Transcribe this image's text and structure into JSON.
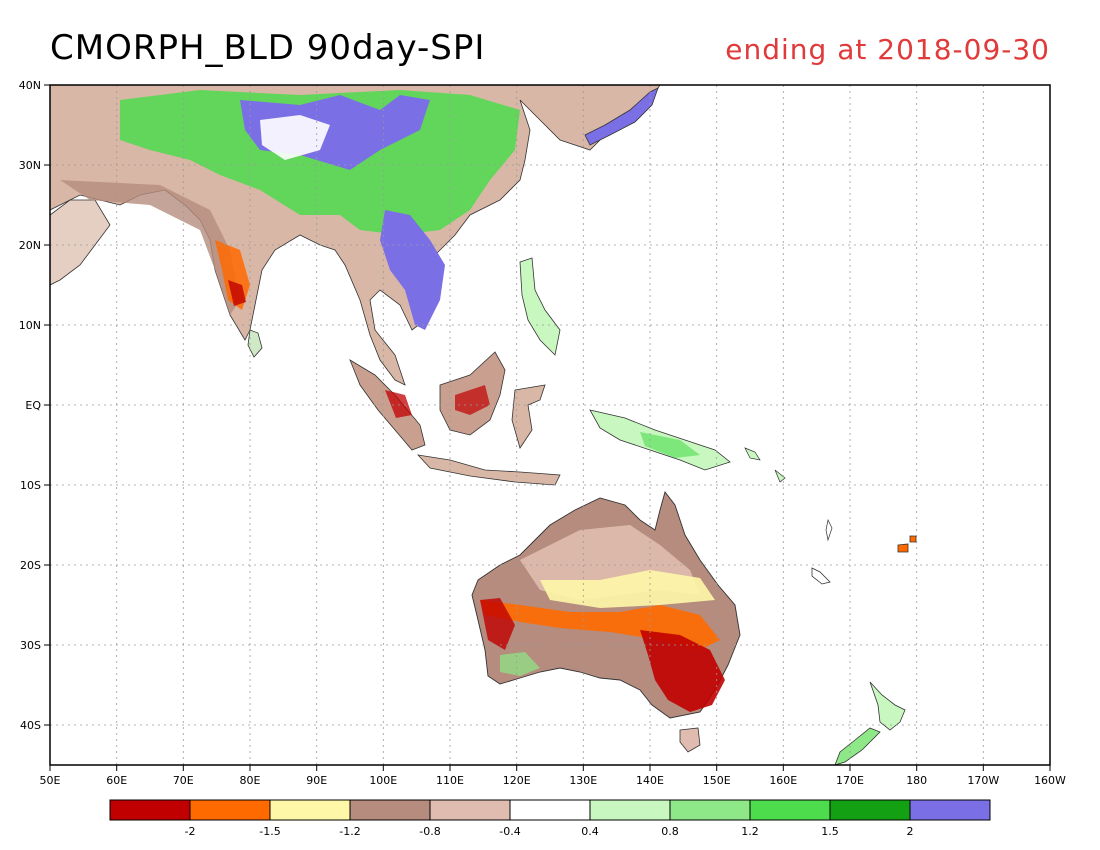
{
  "title": "CMORPH_BLD 90day-SPI",
  "subtitle": "ending at 2018-09-30",
  "map": {
    "lon_range": [
      50,
      200
    ],
    "lat_range": [
      -45,
      40
    ],
    "lon_ticks": [
      "50E",
      "60E",
      "70E",
      "80E",
      "90E",
      "100E",
      "110E",
      "120E",
      "130E",
      "140E",
      "150E",
      "160E",
      "170E",
      "180",
      "170W",
      "160W"
    ],
    "lat_ticks": [
      "40N",
      "30N",
      "20N",
      "10N",
      "EQ",
      "10S",
      "20S",
      "30S",
      "40S"
    ],
    "gridlines": "dotted"
  },
  "legend": {
    "colors": [
      "#c00000",
      "#ff6a00",
      "#fff7a8",
      "#b58c7e",
      "#e0bcb0",
      "#ffffff",
      "#c8f7c0",
      "#8ee888",
      "#4cdc4c",
      "#13a013",
      "#7b6fe6"
    ],
    "labels": [
      "-2",
      "-1.5",
      "-1.2",
      "-0.8",
      "-0.4",
      "0.4",
      "0.8",
      "1.2",
      "1.5",
      "2"
    ]
  }
}
